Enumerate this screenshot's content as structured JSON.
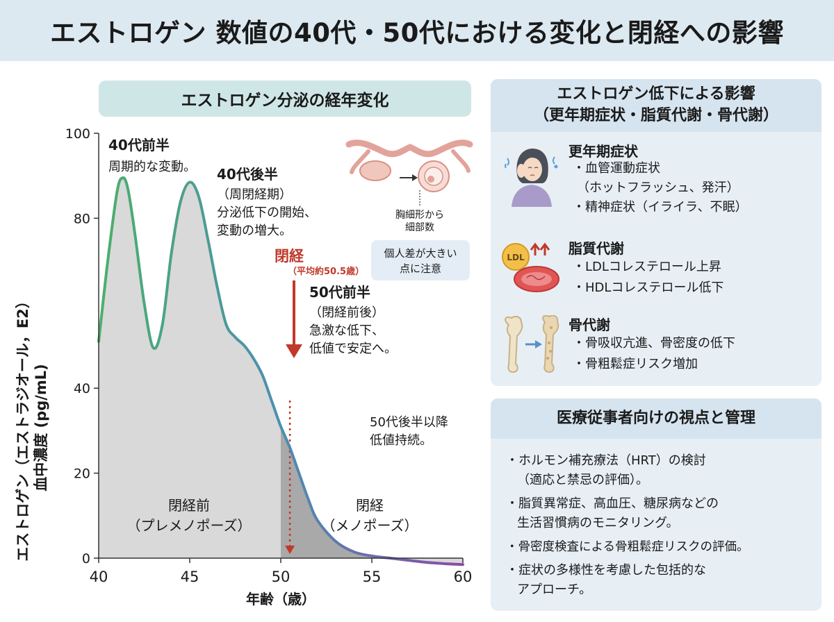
{
  "title": "エストロゲン 数値の40代・50代における変化と閉経への影響",
  "chart_header": "エストロゲン分泌の経年変化",
  "chart_data": {
    "type": "area",
    "xlabel": "年齢（歳）",
    "ylabel_line1": "エストロゲン（エストラジオール，E2）",
    "ylabel_line2": "血中濃度 (pg/mL)",
    "xlim": [
      40,
      60
    ],
    "ylim": [
      0,
      100
    ],
    "xticks": [
      40,
      45,
      50,
      55,
      60
    ],
    "yticks": [
      0,
      20,
      40,
      80,
      100
    ],
    "grid": false,
    "x": [
      40,
      40.5,
      41,
      41.3,
      41.6,
      42,
      42.5,
      43,
      43.5,
      44,
      44.5,
      45,
      45.5,
      46,
      46.5,
      47,
      47.5,
      48,
      48.5,
      49,
      49.5,
      50,
      50.5,
      51,
      51.5,
      52,
      53,
      54,
      55,
      56,
      57,
      58,
      59,
      60
    ],
    "values": [
      51,
      70,
      86,
      89.5,
      87,
      76,
      60,
      49.5,
      55,
      72,
      84,
      88.5,
      85,
      75,
      64,
      55,
      52,
      50,
      47,
      43,
      37,
      31,
      26,
      20,
      14,
      9,
      4,
      1.5,
      0.5,
      0,
      -0.5,
      -1,
      -1.3,
      -1.5
    ],
    "regions": [
      {
        "label1": "閉経前",
        "label2": "（プレメノポーズ）"
      },
      {
        "label1": "閉経",
        "label2": "（メノポーズ）"
      }
    ],
    "menopause_age": 50.5,
    "annotations": {
      "early40_title": "40代前半",
      "early40_text": "周期的な変動。",
      "late40_title": "40代後半",
      "late40_line1": "（周閉経期）",
      "late40_line2": "分泌低下の開始、",
      "late40_line3": "変動の増大。",
      "menopause_title": "閉経",
      "menopause_avg": "（平均約50.5歳）",
      "early50_title": "50代前半",
      "early50_line1": "（閉経前後）",
      "early50_line2": "急激な低下、",
      "early50_line3": "低値で安定へ。",
      "late50_line1": "50代後半以降",
      "late50_line2": "低値持続。",
      "follicle_line1": "胸細形から",
      "follicle_line2": "細部数",
      "individual_line1": "個人差が大きい",
      "individual_line2": "点に注意"
    }
  },
  "effects_panel": {
    "title_line1": "エストロゲン低下による影響",
    "title_line2": "（更年期症状・脂質代謝・骨代謝）",
    "groups": [
      {
        "icon": "woman-headache-icon",
        "title": "更年期症状",
        "lines": [
          "・血管運動症状",
          "（ホットフラッシュ、発汗）",
          "・精神症状（イライラ、不眠）"
        ]
      },
      {
        "icon": "ldl-cholesterol-icon",
        "icon_text": "LDL",
        "title": "脂質代謝",
        "lines": [
          "・LDLコレステロール上昇",
          "・HDLコレステロール低下"
        ]
      },
      {
        "icon": "bone-icon",
        "title": "骨代謝",
        "lines": [
          "・骨吸収亢進、骨密度の低下",
          "・骨粗鬆症リスク増加"
        ]
      }
    ]
  },
  "management_panel": {
    "title": "医療従事者向けの視点と管理",
    "lines": [
      "・ホルモン補充療法（HRT）の検討",
      "（適応と禁忌の評価）。",
      "・脂質異常症、高血圧、糖尿病などの",
      "生活習慣病のモニタリング。",
      "・骨密度検査による骨粗鬆症リスクの評価。",
      "・症状の多様性を考慮した包括的な",
      "アプローチ。"
    ]
  },
  "colors": {
    "curve_start": "#4caf6a",
    "curve_mid": "#4b8fb0",
    "curve_end": "#8c4aa8",
    "menopause_red": "#c0392b",
    "panel_bg": "#e7eff5",
    "header_bg": "#d6e4ef",
    "chart_header_bg": "#cfe6e6"
  }
}
